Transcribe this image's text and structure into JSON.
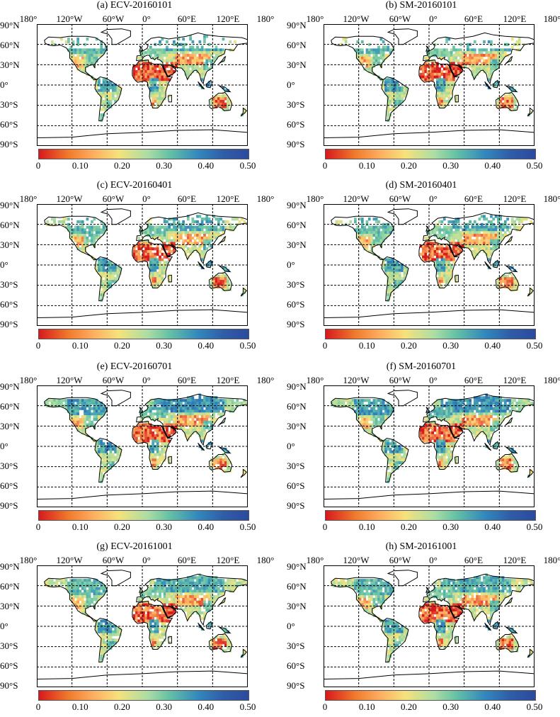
{
  "panels": [
    {
      "title": "(a) ECV-20160101",
      "colorbar_ticks": [
        "0",
        "0.10",
        "0.20",
        "0.30",
        "0.40",
        "0.50"
      ]
    },
    {
      "title": "(b) SM-20160101",
      "colorbar_ticks": [
        "0",
        "0.10",
        "0.20",
        "0.30",
        "0.40",
        "0.50"
      ]
    },
    {
      "title": "(c) ECV-20160401",
      "colorbar_ticks": [
        "0",
        "0.10",
        "0.20",
        "0.30",
        "0.40",
        "0.50"
      ]
    },
    {
      "title": "(d) SM-20160401",
      "colorbar_ticks": [
        "0",
        "0.10",
        "0.20",
        "0.30",
        "0.40",
        "0.50"
      ]
    },
    {
      "title": "(e) ECV-20160701",
      "colorbar_ticks": [
        "0",
        "0.10",
        "0.20",
        "0.30",
        "0.40",
        "0.50"
      ]
    },
    {
      "title": "(f) SM-20160701",
      "colorbar_ticks": [
        "0",
        "0.10",
        "0.20",
        "0.30",
        "0.40",
        "0.50"
      ]
    },
    {
      "title": "(g) ECV-20161001",
      "colorbar_ticks": [
        "0",
        "0.10",
        "0.20",
        "0.30",
        "0.40",
        "0.50"
      ]
    },
    {
      "title": "(h) SM-20161001",
      "colorbar_ticks": [
        "0",
        "0.10",
        "0.20",
        "0.30",
        "0.40",
        "0.50"
      ]
    }
  ],
  "lon_labels": [
    "180°",
    "120°W",
    "60°W",
    "0°",
    "60°E",
    "120°E",
    "180°"
  ],
  "lat_labels": [
    "90°N",
    "60°N",
    "30°N",
    "0°",
    "30°S",
    "60°S",
    "90°S"
  ],
  "colorscale": {
    "min": 0,
    "max": 0.5,
    "colors": [
      "#d7191c",
      "#fdae61",
      "#f6e27c",
      "#abdda4",
      "#66c2a5",
      "#3288bd",
      "#2c4a9e"
    ]
  }
}
